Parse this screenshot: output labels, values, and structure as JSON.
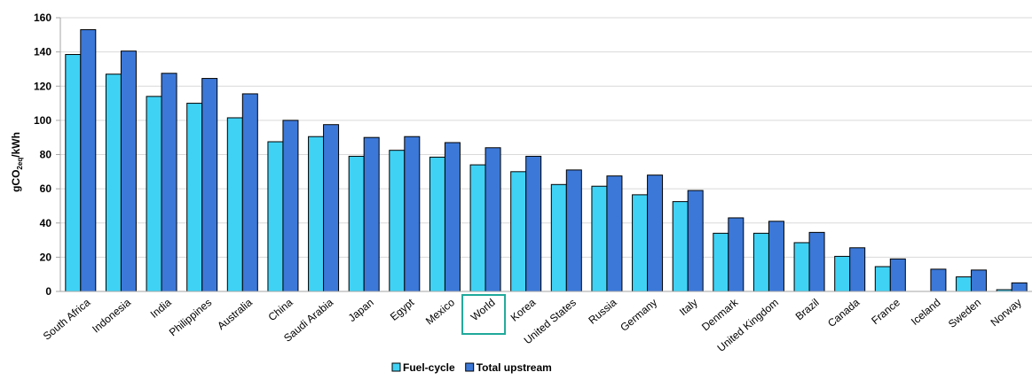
{
  "chart_data": {
    "type": "bar",
    "ylabel": "gCO",
    "ylabel_sub": "2eq",
    "ylabel_suffix": "/kWh",
    "ylim": [
      0,
      160
    ],
    "yticks": [
      0,
      20,
      40,
      60,
      80,
      100,
      120,
      140,
      160
    ],
    "grid": true,
    "legend_position": "bottom-center",
    "highlighted_category": "World",
    "categories": [
      "South Africa",
      "Indonesia",
      "India",
      "Philippines",
      "Australia",
      "China",
      "Saudi Arabia",
      "Japan",
      "Egypt",
      "Mexico",
      "World",
      "Korea",
      "United States",
      "Russia",
      "Germany",
      "Italy",
      "Denmark",
      "United Kingdom",
      "Brazil",
      "Canada",
      "France",
      "Iceland",
      "Sweden",
      "Norway"
    ],
    "series": [
      {
        "name": "Fuel-cycle",
        "color": "#3FD2F5",
        "values": [
          138.5,
          127,
          114,
          110,
          101.5,
          87.5,
          90.5,
          79,
          82.5,
          78.5,
          74,
          70,
          62.5,
          61.5,
          56.5,
          52.5,
          34,
          34,
          28.5,
          20.5,
          14.5,
          0,
          8.5,
          1
        ]
      },
      {
        "name": "Total upstream",
        "color": "#3C78D8",
        "values": [
          153,
          140.5,
          127.5,
          124.5,
          115.5,
          100,
          97.5,
          90,
          90.5,
          87,
          84,
          79,
          71,
          67.5,
          68,
          59,
          43,
          41,
          34.5,
          25.5,
          19,
          13,
          12.5,
          5
        ]
      }
    ],
    "highlight_color": "#1FA89A"
  }
}
